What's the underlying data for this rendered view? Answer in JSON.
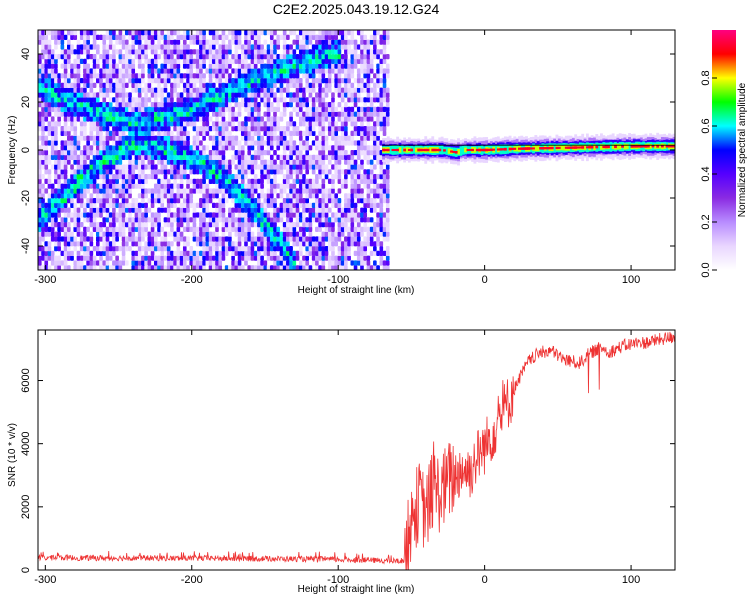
{
  "title": "C2E2.2025.043.19.12.G24",
  "chart_data": [
    {
      "type": "heatmap",
      "title": "C2E2.2025.043.19.12.G24",
      "xlabel": "Height of straight line (km)",
      "ylabel": "Frequency (Hz)",
      "xlim": [
        -305,
        130
      ],
      "ylim": [
        -50,
        50
      ],
      "x_ticks": [
        -300,
        -200,
        -100,
        0,
        100
      ],
      "y_ticks": [
        -40,
        -20,
        0,
        20,
        40
      ],
      "colorbar": {
        "label": "Normalized spectral amplitude",
        "range": [
          0,
          1
        ],
        "ticks": [
          0.0,
          0.2,
          0.4,
          0.6,
          0.8
        ],
        "colormap": [
          "#ffffff",
          "#e9d6ff",
          "#b88cff",
          "#8a2be2",
          "#5500ff",
          "#0000ff",
          "#00ffff",
          "#00ff00",
          "#ffff00",
          "#ff0000",
          "#ff0080"
        ]
      },
      "open_loop_region": {
        "x_range": [
          -305,
          -67
        ],
        "features": [
          {
            "name": "arc",
            "points": [
              [
                -305,
                -30
              ],
              [
                -280,
                -15
              ],
              [
                -260,
                -5
              ],
              [
                -240,
                2
              ],
              [
                -220,
                0
              ],
              [
                -200,
                -5
              ],
              [
                -180,
                -12
              ],
              [
                -160,
                -25
              ],
              [
                -140,
                -40
              ],
              [
                -130,
                -50
              ]
            ]
          },
          {
            "name": "arc",
            "points": [
              [
                -305,
                25
              ],
              [
                -280,
                18
              ],
              [
                -260,
                14
              ],
              [
                -240,
                10
              ],
              [
                -220,
                13
              ],
              [
                -200,
                16
              ],
              [
                -180,
                22
              ],
              [
                -160,
                28
              ],
              [
                -140,
                32
              ],
              [
                -120,
                37
              ],
              [
                -100,
                40
              ]
            ]
          }
        ]
      },
      "closed_loop_region": {
        "x_range": [
          -70,
          130
        ],
        "center_line": [
          [
            -70,
            0
          ],
          [
            -30,
            0
          ],
          [
            -20,
            -1
          ],
          [
            -15,
            0
          ],
          [
            0,
            0
          ],
          [
            20,
            0.5
          ],
          [
            60,
            1
          ],
          [
            100,
            1.5
          ],
          [
            130,
            1.5
          ]
        ]
      }
    },
    {
      "type": "line",
      "xlabel": "Height of straight line (km)",
      "ylabel": "SNR (10 * v/v)",
      "xlim": [
        -305,
        130
      ],
      "ylim": [
        0,
        7600
      ],
      "x_ticks": [
        -300,
        -200,
        -100,
        0,
        100
      ],
      "y_ticks": [
        0,
        2000,
        4000,
        6000
      ],
      "color": "#ee3333",
      "series": [
        {
          "x": [
            -305,
            -290,
            -270,
            -250,
            -230,
            -210,
            -190,
            -170,
            -150,
            -130,
            -110,
            -90,
            -70,
            -60,
            -55,
            -50,
            -45,
            -40,
            -35,
            -30,
            -25,
            -20,
            -15,
            -10,
            -5,
            0,
            5,
            10,
            15,
            20,
            25,
            30,
            35,
            40,
            45,
            50,
            55,
            60,
            65,
            70,
            75,
            80,
            85,
            90,
            95,
            100,
            105,
            110,
            115,
            120,
            125,
            130
          ],
          "values": [
            380,
            390,
            380,
            380,
            380,
            370,
            370,
            360,
            360,
            350,
            340,
            320,
            300,
            280,
            300,
            1500,
            2200,
            1800,
            2600,
            2400,
            2800,
            3000,
            3200,
            3100,
            3600,
            3900,
            4300,
            4800,
            5200,
            5700,
            6200,
            6600,
            6800,
            6900,
            6950,
            6800,
            6650,
            6600,
            6550,
            6800,
            6950,
            7050,
            6900,
            7000,
            7100,
            7150,
            7200,
            7200,
            7250,
            7300,
            7350,
            7380
          ]
        }
      ]
    }
  ]
}
